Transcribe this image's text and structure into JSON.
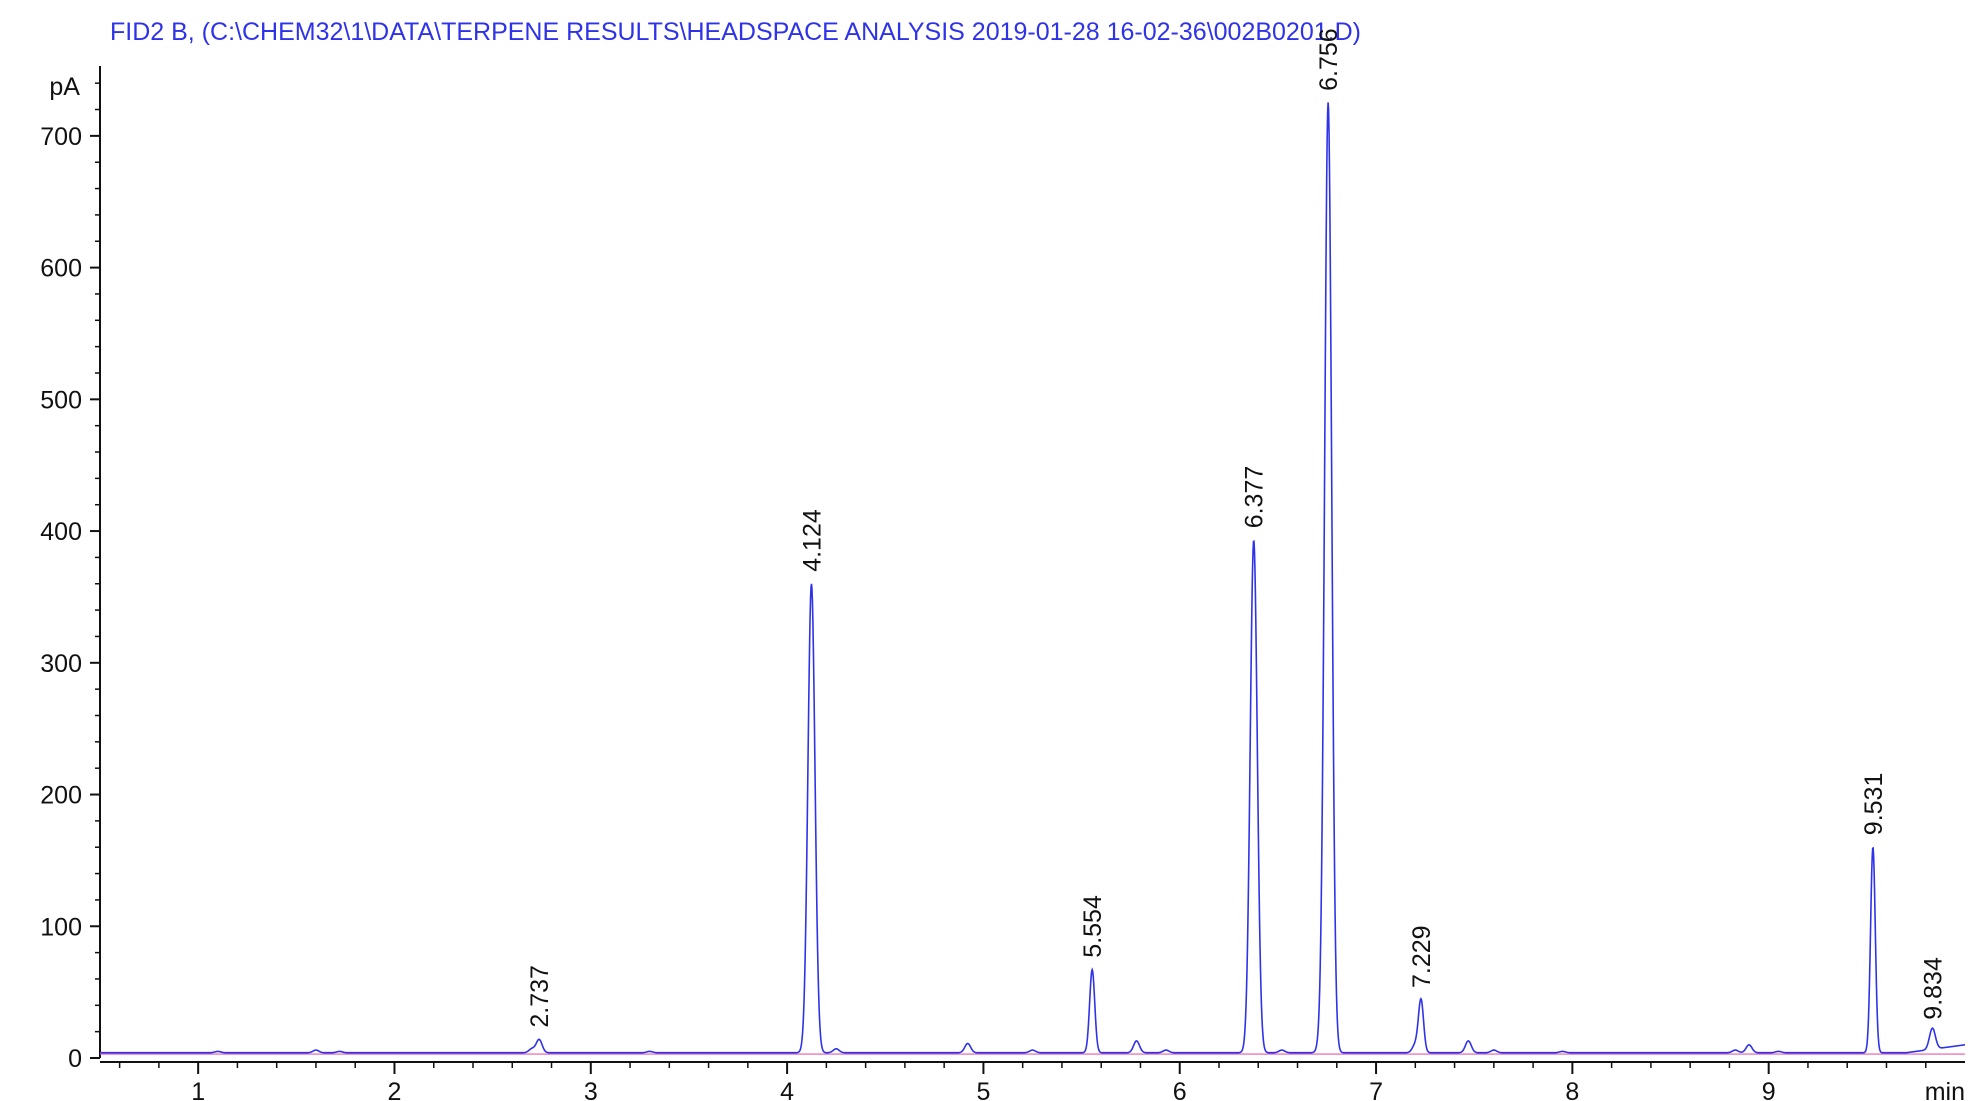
{
  "chart_data": {
    "type": "line",
    "title": "FID2 B,  (C:\\CHEM32\\1\\DATA\\TERPENE RESULTS\\HEADSPACE ANALYSIS 2019-01-28 16-02-36\\002B0201.D)",
    "ylabel": "pA",
    "xlabel": "min",
    "xlim": [
      0.5,
      10.0
    ],
    "ylim": [
      0,
      750
    ],
    "x_ticks": [
      1,
      2,
      3,
      4,
      5,
      6,
      7,
      8,
      9
    ],
    "y_ticks": [
      0,
      100,
      200,
      300,
      400,
      500,
      600,
      700
    ],
    "grid": false,
    "baseline": 4,
    "colors": {
      "signal": "#2f33e8",
      "baseline": "#e85aa8",
      "title": "#2f33e8",
      "axis": "#111111"
    },
    "peaks": [
      {
        "rt": 2.737,
        "height": 14,
        "label": "2.737"
      },
      {
        "rt": 4.124,
        "height": 360,
        "label": "4.124"
      },
      {
        "rt": 5.554,
        "height": 67,
        "label": "5.554"
      },
      {
        "rt": 6.377,
        "height": 393,
        "label": "6.377"
      },
      {
        "rt": 6.756,
        "height": 725,
        "label": "6.756"
      },
      {
        "rt": 7.229,
        "height": 44,
        "label": "7.229"
      },
      {
        "rt": 9.531,
        "height": 160,
        "label": "9.531"
      },
      {
        "rt": 9.834,
        "height": 20,
        "label": "9.834"
      }
    ],
    "minor_peaks": [
      {
        "rt": 1.1,
        "height": 5
      },
      {
        "rt": 1.6,
        "height": 6
      },
      {
        "rt": 1.72,
        "height": 5
      },
      {
        "rt": 2.7,
        "height": 7
      },
      {
        "rt": 3.3,
        "height": 5
      },
      {
        "rt": 4.25,
        "height": 7
      },
      {
        "rt": 4.92,
        "height": 11
      },
      {
        "rt": 5.25,
        "height": 6
      },
      {
        "rt": 5.78,
        "height": 13
      },
      {
        "rt": 5.93,
        "height": 6
      },
      {
        "rt": 6.52,
        "height": 6
      },
      {
        "rt": 6.72,
        "height": 12
      },
      {
        "rt": 7.2,
        "height": 10
      },
      {
        "rt": 7.47,
        "height": 13
      },
      {
        "rt": 7.6,
        "height": 6
      },
      {
        "rt": 7.95,
        "height": 5
      },
      {
        "rt": 8.83,
        "height": 6
      },
      {
        "rt": 8.9,
        "height": 10
      },
      {
        "rt": 9.05,
        "height": 5
      }
    ]
  }
}
